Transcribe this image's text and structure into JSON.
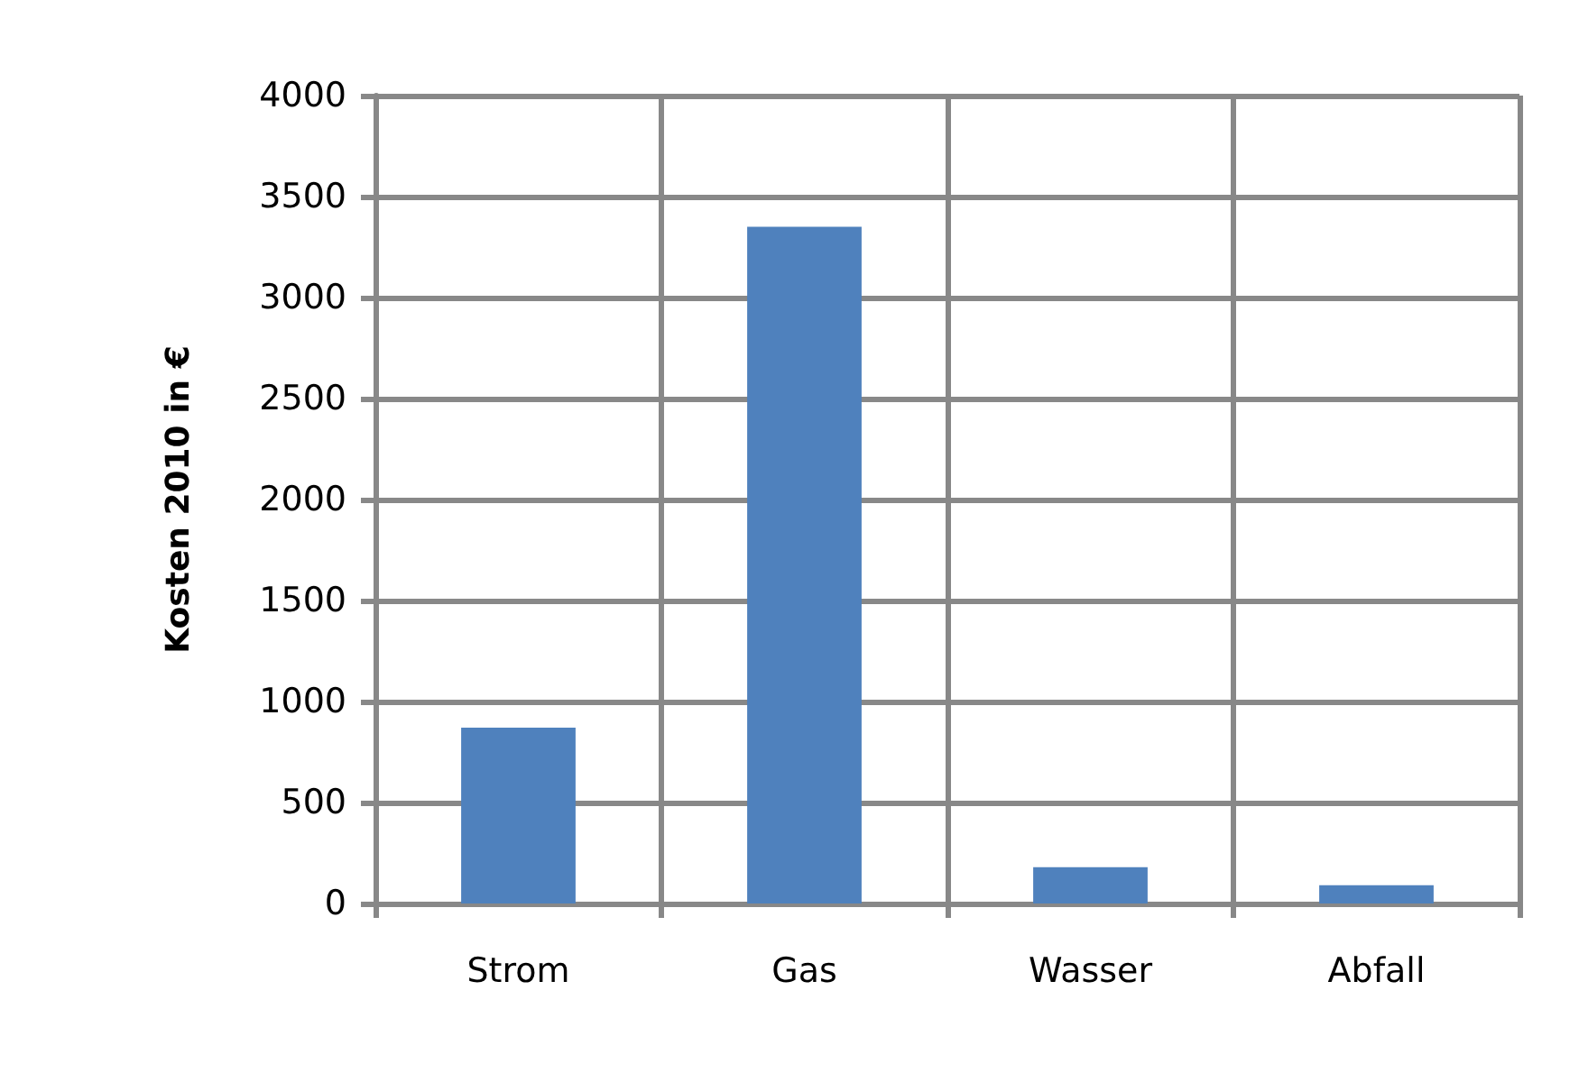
{
  "chart_data": {
    "type": "bar",
    "ylabel": "Kosten 2010 in €",
    "categories": [
      "Strom",
      "Gas",
      "Wasser",
      "Abfall"
    ],
    "values": [
      870,
      3350,
      180,
      90
    ],
    "color": "#4f81bd",
    "ylim": [
      0,
      4000
    ],
    "yticks": [
      0,
      500,
      1000,
      1500,
      2000,
      2500,
      3000,
      3500,
      4000
    ],
    "grid": true
  }
}
